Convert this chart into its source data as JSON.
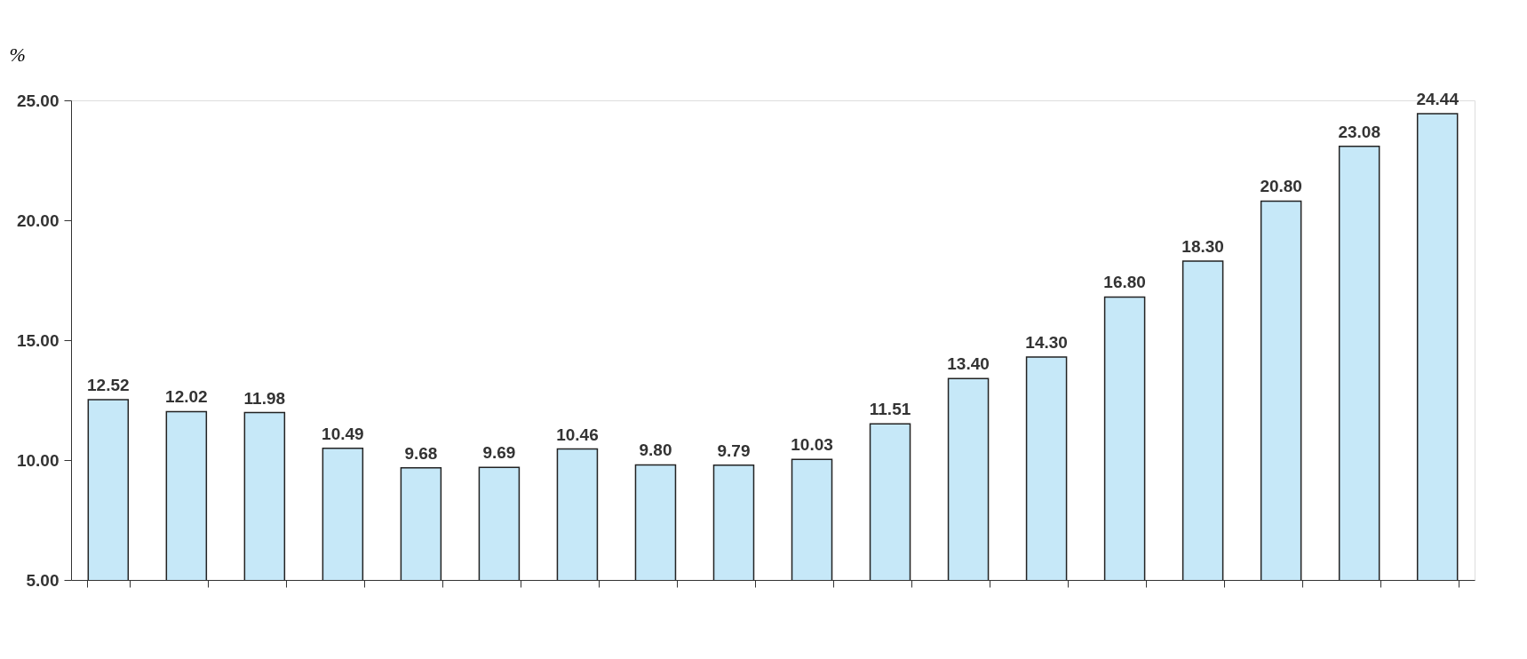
{
  "chart_data": {
    "type": "bar",
    "ylabel": "%",
    "categories": [
      null,
      null,
      null,
      null,
      null,
      null,
      null,
      null,
      null,
      null,
      null,
      null,
      null,
      null,
      null,
      null,
      null,
      null
    ],
    "values": [
      12.52,
      12.02,
      11.98,
      10.49,
      9.68,
      9.69,
      10.46,
      9.8,
      9.79,
      10.03,
      11.51,
      13.4,
      14.3,
      16.8,
      18.3,
      20.8,
      23.08,
      24.44
    ],
    "value_labels": [
      "12.52",
      "12.02",
      "11.98",
      "10.49",
      "9.68",
      "9.69",
      "10.46",
      "9.80",
      "9.79",
      "10.03",
      "11.51",
      "13.40",
      "14.30",
      "16.80",
      "18.30",
      "20.80",
      "23.08",
      "24.44"
    ],
    "color": "#c6e8f8",
    "ylim": [
      5,
      25
    ],
    "yticks": [
      {
        "value": 5,
        "label": "5.00"
      },
      {
        "value": 10,
        "label": "10.00"
      },
      {
        "value": 15,
        "label": "15.00"
      },
      {
        "value": 20,
        "label": "20.00"
      },
      {
        "value": 25,
        "label": "25.00"
      }
    ],
    "grid": false,
    "tick_labels": "y"
  }
}
